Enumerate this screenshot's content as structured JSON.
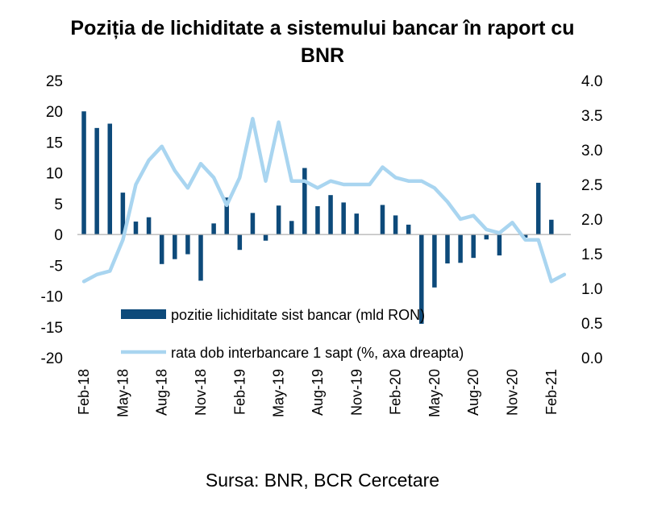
{
  "title_line1": "Poziția de lichiditate a sistemului bancar în raport cu",
  "title_line2": "BNR",
  "source": "Sursa: BNR, BCR Cercetare",
  "chart_data": {
    "type": "bar",
    "title": "Poziția de lichiditate a sistemului bancar în raport cu BNR",
    "x": [
      "Feb-18",
      "Mar-18",
      "Apr-18",
      "May-18",
      "Jun-18",
      "Jul-18",
      "Aug-18",
      "Sep-18",
      "Oct-18",
      "Nov-18",
      "Dec-18",
      "Jan-19",
      "Feb-19",
      "Mar-19",
      "Apr-19",
      "May-19",
      "Jun-19",
      "Jul-19",
      "Aug-19",
      "Sep-19",
      "Oct-19",
      "Nov-19",
      "Dec-19",
      "Jan-20",
      "Feb-20",
      "Mar-20",
      "Apr-20",
      "May-20",
      "Jun-20",
      "Jul-20",
      "Aug-20",
      "Sep-20",
      "Oct-20",
      "Nov-20",
      "Dec-20",
      "Jan-21",
      "Feb-21",
      "Mar-21"
    ],
    "x_tick_labels": [
      "Feb-18",
      "May-18",
      "Aug-18",
      "Nov-18",
      "Feb-19",
      "May-19",
      "Aug-19",
      "Nov-19",
      "Feb-20",
      "May-20",
      "Aug-20",
      "Nov-20",
      "Feb-21"
    ],
    "series": [
      {
        "name": "pozitie lichiditate sist bancar (mld RON)",
        "type": "bar",
        "axis": "left",
        "color": "#0d4a7a",
        "values": [
          20,
          17.3,
          18,
          6.8,
          2.1,
          2.8,
          -4.8,
          -4.0,
          -3.2,
          -7.5,
          1.8,
          6.0,
          -2.5,
          3.5,
          -1.0,
          4.7,
          2.2,
          10.8,
          4.6,
          6.4,
          5.2,
          3.4,
          0,
          4.8,
          3.1,
          1.6,
          -14.5,
          -8.6,
          -4.7,
          -4.6,
          -3.8,
          -0.8,
          -3.4,
          0,
          -0.5,
          8.4,
          2.4,
          0
        ]
      },
      {
        "name": "rata dob interbancare 1 sapt (%, axa dreapta)",
        "type": "line",
        "axis": "right",
        "color": "#a9d5f0",
        "values": [
          1.1,
          1.2,
          1.25,
          1.7,
          2.5,
          2.85,
          3.05,
          2.7,
          2.45,
          2.8,
          2.6,
          2.2,
          2.6,
          3.45,
          2.55,
          3.4,
          2.55,
          2.55,
          2.45,
          2.55,
          2.5,
          2.5,
          2.5,
          2.75,
          2.6,
          2.55,
          2.55,
          2.45,
          2.25,
          2.0,
          2.05,
          1.85,
          1.8,
          1.95,
          1.7,
          1.7,
          1.1,
          1.2
        ]
      }
    ],
    "yleft": {
      "ylim": [
        -20,
        25
      ],
      "ticks": [
        "25",
        "20",
        "15",
        "10",
        "5",
        "0",
        "-5",
        "-10",
        "-15",
        "-20"
      ]
    },
    "yright": {
      "ylim": [
        0,
        4
      ],
      "ticks": [
        "4.0",
        "3.5",
        "3.0",
        "2.5",
        "2.0",
        "1.5",
        "1.0",
        "0.5",
        "0.0"
      ]
    },
    "legend": "inside-bottom-center",
    "grid": false
  }
}
